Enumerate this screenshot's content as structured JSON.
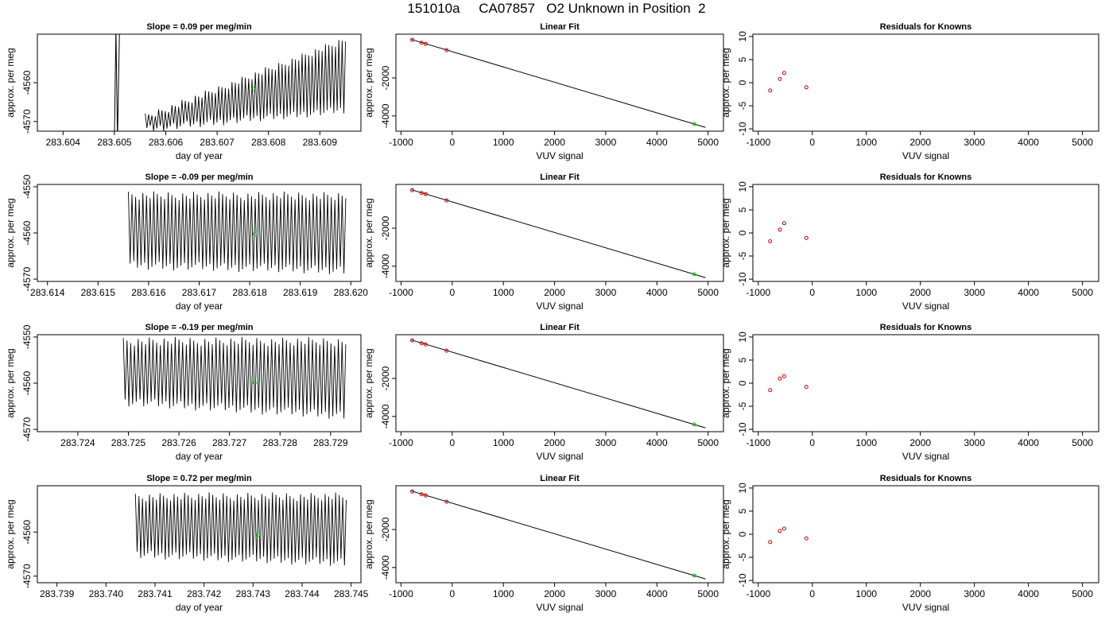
{
  "page_title": "151010a     CA07857   O2 Unknown in Position  2",
  "colors": {
    "trace": "#000000",
    "known_points": "#cc0000",
    "unknown_point": "#00cc00",
    "frame": "#000000"
  },
  "chart_data": [
    {
      "type": "line",
      "title": "Slope =  0.09  per meg/min",
      "xlabel": "day of year",
      "ylabel": "approx. per meg",
      "xlim": [
        283.6035,
        283.6098
      ],
      "ylim": [
        -4572.5,
        -4547.5
      ],
      "xticks": [
        "283.604",
        "283.605",
        "283.606",
        "283.607",
        "283.608",
        "283.609"
      ],
      "yticks": [
        "-4560",
        "-4570"
      ],
      "unknown_point": {
        "x": 283.6077,
        "y": -4561.6
      },
      "trace": {
        "segments": [
          {
            "x_start": 283.605,
            "x_end": 283.6051,
            "y_low": -4575,
            "y_high": -4546
          }
        ],
        "oscillation": {
          "x_start": 283.6056,
          "x_end": 283.6095,
          "y_low_start": -4573,
          "y_high_start": -4568,
          "y_low_end": -4568,
          "y_high_end": -4548
        }
      }
    },
    {
      "type": "scatter",
      "title": "Linear Fit",
      "xlabel": "VUV signal",
      "ylabel": "approx. per meg",
      "xlim": [
        -1100,
        5300
      ],
      "ylim": [
        -4800,
        300
      ],
      "xticks": [
        "-1000",
        "0",
        "1000",
        "2000",
        "3000",
        "4000",
        "5000"
      ],
      "yticks": [
        "-2000",
        "-4000"
      ],
      "fit_line": {
        "x": [
          -800,
          4950
        ],
        "y": [
          25,
          -4600
        ]
      },
      "knowns": {
        "x": [
          -780,
          -600,
          -520,
          -110
        ],
        "y": [
          0,
          -150,
          -210,
          -540
        ]
      },
      "unknown_point": {
        "x": 4730,
        "y": -4420
      }
    },
    {
      "type": "scatter",
      "title": "Residuals for Knowns",
      "xlabel": "VUV signal",
      "ylabel": "approx. per meg",
      "xlim": [
        -1100,
        5300
      ],
      "ylim": [
        -10.5,
        10.5
      ],
      "xticks": [
        "-1000",
        "0",
        "1000",
        "2000",
        "3000",
        "4000",
        "5000"
      ],
      "yticks": [
        "-10",
        "-5",
        "0",
        "5",
        "10"
      ],
      "residuals": {
        "x": [
          -780,
          -600,
          -520,
          -110
        ],
        "y": [
          -1.7,
          0.8,
          2.1,
          -1.0
        ]
      }
    },
    {
      "type": "line",
      "title": "Slope =  -0.09  per meg/min",
      "xlabel": "day of year",
      "ylabel": "approx. per meg",
      "xlim": [
        283.6138,
        283.6202
      ],
      "ylim": [
        -4570.5,
        -4549.5
      ],
      "xticks": [
        "283.614",
        "283.615",
        "283.616",
        "283.617",
        "283.618",
        "283.619",
        "283.620"
      ],
      "yticks": [
        "-4550",
        "-4560",
        "-4570"
      ],
      "unknown_point": {
        "x": 283.6181,
        "y": -4560.2
      },
      "trace": {
        "segments": [],
        "oscillation": {
          "x_start": 283.6156,
          "x_end": 283.6199,
          "y_low_start": -4568,
          "y_high_start": -4551,
          "y_low_end": -4569,
          "y_high_end": -4551
        }
      }
    },
    {
      "type": "scatter",
      "title": "Linear Fit",
      "xlabel": "VUV signal",
      "ylabel": "approx. per meg",
      "xlim": [
        -1100,
        5300
      ],
      "ylim": [
        -4800,
        300
      ],
      "xticks": [
        "-1000",
        "0",
        "1000",
        "2000",
        "3000",
        "4000",
        "5000"
      ],
      "yticks": [
        "-2000",
        "-4000"
      ],
      "fit_line": {
        "x": [
          -800,
          4950
        ],
        "y": [
          25,
          -4600
        ]
      },
      "knowns": {
        "x": [
          -780,
          -600,
          -520,
          -110
        ],
        "y": [
          0,
          -150,
          -210,
          -540
        ]
      },
      "unknown_point": {
        "x": 4730,
        "y": -4420
      }
    },
    {
      "type": "scatter",
      "title": "Residuals for Knowns",
      "xlabel": "VUV signal",
      "ylabel": "approx. per meg",
      "xlim": [
        -1100,
        5300
      ],
      "ylim": [
        -10.5,
        10.5
      ],
      "xticks": [
        "-1000",
        "0",
        "1000",
        "2000",
        "3000",
        "4000",
        "5000"
      ],
      "yticks": [
        "-10",
        "-5",
        "0",
        "5",
        "10"
      ],
      "residuals": {
        "x": [
          -780,
          -600,
          -520,
          -110
        ],
        "y": [
          -1.8,
          0.7,
          2.1,
          -1.1
        ]
      }
    },
    {
      "type": "line",
      "title": "Slope =  -0.19  per meg/min",
      "xlabel": "day of year",
      "ylabel": "approx. per meg",
      "xlim": [
        283.7232,
        283.7296
      ],
      "ylim": [
        -4570.5,
        -4549.5
      ],
      "xticks": [
        "283.724",
        "283.725",
        "283.726",
        "283.727",
        "283.728",
        "283.729"
      ],
      "yticks": [
        "-4550",
        "-4560",
        "-4570"
      ],
      "unknown_point": {
        "x": 283.7275,
        "y": -4559.9
      },
      "trace": {
        "segments": [],
        "oscillation": {
          "x_start": 283.7249,
          "x_end": 283.7293,
          "y_low_start": -4565,
          "y_high_start": -4550,
          "y_low_end": -4568,
          "y_high_end": -4550
        }
      }
    },
    {
      "type": "scatter",
      "title": "Linear Fit",
      "xlabel": "VUV signal",
      "ylabel": "approx. per meg",
      "xlim": [
        -1100,
        5300
      ],
      "ylim": [
        -4800,
        300
      ],
      "xticks": [
        "-1000",
        "0",
        "1000",
        "2000",
        "3000",
        "4000",
        "5000"
      ],
      "yticks": [
        "-2000",
        "-4000"
      ],
      "fit_line": {
        "x": [
          -800,
          4950
        ],
        "y": [
          25,
          -4600
        ]
      },
      "knowns": {
        "x": [
          -780,
          -600,
          -520,
          -110
        ],
        "y": [
          0,
          -150,
          -210,
          -540
        ]
      },
      "unknown_point": {
        "x": 4730,
        "y": -4420
      }
    },
    {
      "type": "scatter",
      "title": "Residuals for Knowns",
      "xlabel": "VUV signal",
      "ylabel": "approx. per meg",
      "xlim": [
        -1100,
        5300
      ],
      "ylim": [
        -10.5,
        10.5
      ],
      "xticks": [
        "-1000",
        "0",
        "1000",
        "2000",
        "3000",
        "4000",
        "5000"
      ],
      "yticks": [
        "-10",
        "-5",
        "0",
        "5",
        "10"
      ],
      "residuals": {
        "x": [
          -780,
          -600,
          -520,
          -110
        ],
        "y": [
          -1.5,
          1.0,
          1.5,
          -0.8
        ]
      }
    },
    {
      "type": "line",
      "title": "Slope =  0.72  per meg/min",
      "xlabel": "day of year",
      "ylabel": "approx. per meg",
      "xlim": [
        283.7386,
        283.7452
      ],
      "ylim": [
        -4571.5,
        -4549.5
      ],
      "xticks": [
        "283.739",
        "283.740",
        "283.741",
        "283.742",
        "283.743",
        "283.744",
        "283.745"
      ],
      "yticks": [
        "-4560",
        "-4570"
      ],
      "unknown_point": {
        "x": 283.7431,
        "y": -4560.6
      },
      "trace": {
        "segments": [],
        "oscillation": {
          "x_start": 283.7406,
          "x_end": 283.7449,
          "y_low_start": -4566,
          "y_high_start": -4551,
          "y_low_end": -4568,
          "y_high_end": -4551
        }
      }
    },
    {
      "type": "scatter",
      "title": "Linear Fit",
      "xlabel": "VUV signal",
      "ylabel": "approx. per meg",
      "xlim": [
        -1100,
        5300
      ],
      "ylim": [
        -4800,
        300
      ],
      "xticks": [
        "-1000",
        "0",
        "1000",
        "2000",
        "3000",
        "4000",
        "5000"
      ],
      "yticks": [
        "-2000",
        "-4000"
      ],
      "fit_line": {
        "x": [
          -800,
          4950
        ],
        "y": [
          25,
          -4600
        ]
      },
      "knowns": {
        "x": [
          -780,
          -600,
          -520,
          -110
        ],
        "y": [
          0,
          -150,
          -210,
          -540
        ]
      },
      "unknown_point": {
        "x": 4730,
        "y": -4420
      }
    },
    {
      "type": "scatter",
      "title": "Residuals for Knowns",
      "xlabel": "VUV signal",
      "ylabel": "approx. per meg",
      "xlim": [
        -1100,
        5300
      ],
      "ylim": [
        -10.5,
        10.5
      ],
      "xticks": [
        "-1000",
        "0",
        "1000",
        "2000",
        "3000",
        "4000",
        "5000"
      ],
      "yticks": [
        "-10",
        "-5",
        "0",
        "5",
        "10"
      ],
      "residuals": {
        "x": [
          -780,
          -600,
          -520,
          -110
        ],
        "y": [
          -1.7,
          0.7,
          1.2,
          -0.9
        ]
      }
    }
  ]
}
